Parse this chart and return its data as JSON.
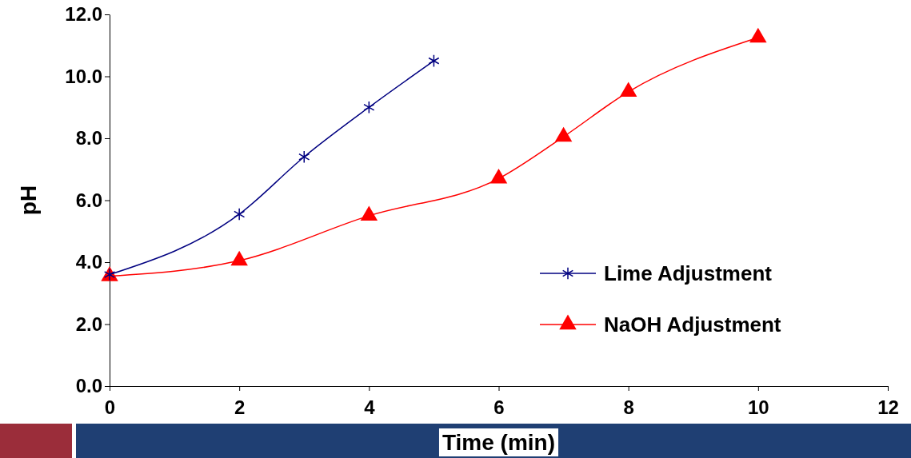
{
  "chart_data": {
    "type": "line",
    "xlabel": "Time (min)",
    "ylabel": "pH",
    "xlim": [
      0,
      12
    ],
    "xticks": [
      0,
      2,
      4,
      6,
      8,
      10,
      12
    ],
    "ylim": [
      0,
      12
    ],
    "yticks": [
      {
        "value": 0,
        "label": "0.0"
      },
      {
        "value": 2,
        "label": "2.0"
      },
      {
        "value": 4,
        "label": "4.0"
      },
      {
        "value": 6,
        "label": "6.0"
      },
      {
        "value": 8,
        "label": "8.0"
      },
      {
        "value": 10,
        "label": "10.0"
      },
      {
        "value": 12,
        "label": "12.0"
      }
    ],
    "grid": false,
    "legend": "bottom right",
    "line_style": "solid",
    "series": [
      {
        "name": "Lime Adjustment",
        "color": "#000080",
        "marker": "cross",
        "x": [
          0,
          2,
          3,
          4,
          5
        ],
        "values": [
          3.6,
          5.55,
          7.4,
          9.0,
          10.5
        ]
      },
      {
        "name": "NaOH Adjustment",
        "color": "#ff0000",
        "marker": "triangle",
        "x": [
          0,
          2,
          4,
          6,
          7,
          8,
          10
        ],
        "values": [
          3.55,
          4.05,
          5.5,
          6.7,
          8.05,
          9.5,
          11.25
        ]
      }
    ]
  }
}
